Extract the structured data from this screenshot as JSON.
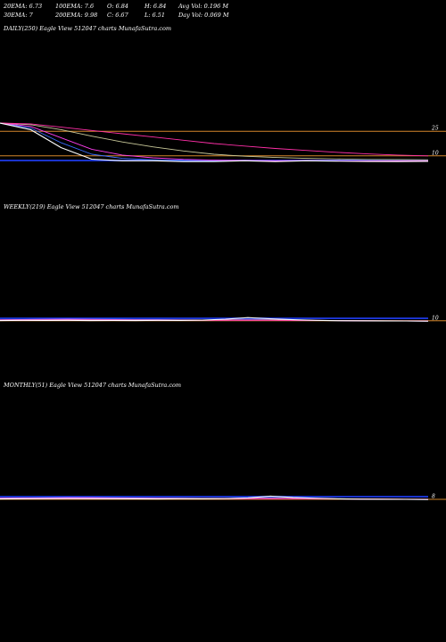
{
  "header": {
    "row1": [
      "20EMA: 6.73",
      "100EMA: 7.6",
      "O: 6.84",
      "H: 6.84",
      "Avg Vol: 0.196  M"
    ],
    "row2": [
      "30EMA: 7",
      "200EMA: 9.98",
      "C: 6.67",
      "L: 6.51",
      "Day Vol: 0.069 M"
    ]
  },
  "colors": {
    "background": "#000000",
    "price": "#ffffff",
    "ema20": "#3b6cff",
    "ema30": "#ff3df0",
    "ema100": "#c9c99a",
    "ema200": "#ff2fa8",
    "level": "#d4862a",
    "band": "#1a33cc"
  },
  "chart_data": [
    {
      "type": "line",
      "title": "DAILY(250) Eagle   View  512047 charts MunafaSutra.com",
      "y_tick_labels": [
        "25",
        "10"
      ],
      "y_ticks": [
        25,
        10
      ],
      "ylim": [
        5,
        30
      ],
      "grid": false,
      "x_count": 250,
      "series": [
        {
          "role": "price",
          "color": "#ffffff",
          "values": [
            30,
            26,
            15,
            8,
            7,
            7,
            6.5,
            6.5,
            7,
            6.5,
            7,
            6.8,
            6.6,
            6.5,
            6.7
          ]
        },
        {
          "role": "ema20",
          "color": "#3b6cff",
          "values": [
            30,
            27,
            18,
            11,
            8.5,
            7.6,
            7.1,
            6.9,
            6.9,
            6.8,
            6.9,
            6.8,
            6.7,
            6.7,
            6.73
          ]
        },
        {
          "role": "ema30",
          "color": "#ff3df0",
          "values": [
            30,
            28,
            21,
            14,
            10.5,
            8.8,
            7.9,
            7.4,
            7.2,
            7,
            7.1,
            7,
            6.9,
            6.9,
            7
          ]
        },
        {
          "role": "ema100",
          "color": "#c9c99a",
          "values": [
            30,
            29,
            26,
            22,
            18.5,
            15.5,
            13,
            11,
            9.8,
            9,
            8.5,
            8.1,
            7.8,
            7.7,
            7.6
          ]
        },
        {
          "role": "ema200",
          "color": "#ff2fa8",
          "values": [
            30,
            29.5,
            27.5,
            25.5,
            23.5,
            21.5,
            19.5,
            17.5,
            16,
            14.5,
            13.3,
            12.2,
            11.2,
            10.5,
            9.98
          ]
        }
      ],
      "levels": [
        25,
        10
      ]
    },
    {
      "type": "line",
      "title": "WEEKLY(219) Eagle   View  512047 charts MunafaSutra.com",
      "y_tick_labels": [
        "10"
      ],
      "y_ticks": [
        10
      ],
      "ylim": [
        0,
        200
      ],
      "grid": false,
      "x_count": 219,
      "series": [
        {
          "role": "price",
          "color": "#ffffff",
          "values": [
            12,
            14,
            13,
            14,
            12,
            13,
            12,
            14,
            13,
            16,
            25,
            40,
            28,
            20,
            14,
            11,
            10,
            9,
            8,
            7
          ]
        },
        {
          "role": "ema20",
          "color": "#3b6cff",
          "values": [
            18,
            22,
            26,
            28,
            27,
            25,
            22,
            20,
            18,
            17,
            18,
            20,
            19,
            16,
            13,
            11,
            10,
            9,
            8,
            7
          ]
        },
        {
          "role": "ema30",
          "color": "#ff3df0",
          "values": [
            20,
            21,
            23,
            24,
            23,
            22,
            20,
            19,
            18,
            17,
            18,
            19,
            18,
            16,
            14,
            12,
            10,
            9,
            8,
            7
          ]
        },
        {
          "role": "ema100",
          "color": "#c9c99a",
          "values": [
            16,
            17,
            18,
            18,
            18,
            17,
            17,
            16,
            16,
            15,
            15,
            16,
            16,
            15,
            13,
            12,
            11,
            10,
            9,
            8
          ]
        },
        {
          "role": "ema200",
          "color": "#ff2fa8",
          "values": [
            14,
            14,
            15,
            15,
            15,
            15,
            14,
            14,
            14,
            14,
            14,
            14,
            14,
            13,
            12,
            12,
            11,
            10,
            10,
            10
          ]
        }
      ],
      "levels": [
        10
      ]
    },
    {
      "type": "line",
      "title": "MONTHLY(51) Eagle   View  512047 charts MunafaSutra.com",
      "y_tick_labels": [
        "8"
      ],
      "y_ticks": [
        8
      ],
      "ylim": [
        0,
        200
      ],
      "grid": false,
      "x_count": 51,
      "series": [
        {
          "role": "price",
          "color": "#ffffff",
          "values": [
            12,
            14,
            15,
            16,
            15,
            14,
            13,
            12,
            14,
            13,
            15,
            22,
            38,
            26,
            18,
            13,
            10,
            9,
            8,
            7
          ]
        },
        {
          "role": "ema20",
          "color": "#3b6cff",
          "values": [
            18,
            20,
            24,
            27,
            26,
            24,
            21,
            19,
            18,
            17,
            17,
            19,
            20,
            18,
            15,
            12,
            10,
            9,
            8,
            7
          ]
        },
        {
          "role": "ema30",
          "color": "#ff3df0",
          "values": [
            20,
            21,
            22,
            23,
            23,
            22,
            20,
            19,
            18,
            17,
            17,
            18,
            19,
            17,
            15,
            13,
            11,
            10,
            9,
            8
          ]
        },
        {
          "role": "ema100",
          "color": "#c9c99a",
          "values": [
            15,
            16,
            17,
            17,
            17,
            16,
            16,
            15,
            15,
            15,
            15,
            15,
            16,
            15,
            14,
            13,
            12,
            11,
            10,
            9
          ]
        },
        {
          "role": "ema200",
          "color": "#ff2fa8",
          "values": [
            13,
            13,
            14,
            14,
            14,
            14,
            13,
            13,
            13,
            13,
            13,
            13,
            13,
            13,
            12,
            12,
            11,
            11,
            10,
            10
          ]
        }
      ],
      "levels": [
        8
      ]
    }
  ]
}
